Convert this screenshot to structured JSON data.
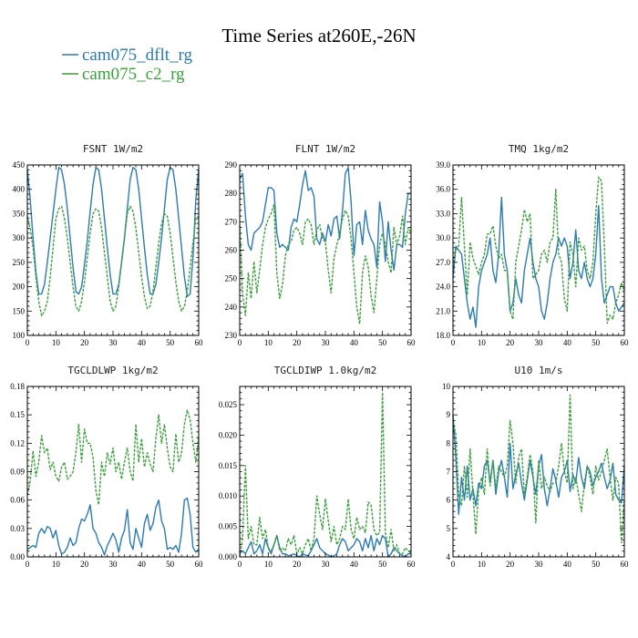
{
  "title": "Time Series at260E,-26N",
  "colors": {
    "series_a": "#2b7bb4",
    "series_b": "#3aa13a"
  },
  "legend": [
    {
      "label": "cam075_dflt_rg",
      "color": "#2b7bb4",
      "dash": "solid"
    },
    {
      "label": "cam075_c2_rg",
      "color": "#3aa13a",
      "dash": "solid"
    }
  ],
  "chart_data": [
    {
      "type": "line",
      "title": "FSNT   1W/m2",
      "xlim": [
        0,
        60
      ],
      "ylim": [
        100,
        450
      ],
      "x_ticks": [
        "0",
        "10",
        "20",
        "30",
        "40",
        "50",
        "60"
      ],
      "y_ticks": [
        "100",
        "150",
        "200",
        "250",
        "300",
        "350",
        "400",
        "450"
      ],
      "series": [
        {
          "name": "cam075_dflt_rg",
          "color": "#2b7bb4",
          "dash": "solid",
          "values": [
            440,
            380,
            300,
            230,
            185,
            185,
            205,
            250,
            300,
            350,
            400,
            445,
            440,
            410,
            360,
            300,
            240,
            190,
            185,
            200,
            245,
            295,
            355,
            410,
            445,
            440,
            400,
            340,
            280,
            225,
            185,
            185,
            205,
            250,
            300,
            360,
            420,
            445,
            440,
            400,
            340,
            280,
            225,
            185,
            185,
            205,
            250,
            300,
            360,
            420,
            445,
            440,
            400,
            340,
            280,
            220,
            180,
            185,
            260,
            380,
            440
          ]
        },
        {
          "name": "cam075_c2_rg",
          "color": "#3aa13a",
          "dash": "dashed",
          "values": [
            345,
            320,
            280,
            220,
            170,
            140,
            150,
            170,
            220,
            280,
            340,
            360,
            365,
            340,
            300,
            250,
            200,
            160,
            150,
            170,
            210,
            260,
            310,
            350,
            360,
            355,
            320,
            270,
            220,
            170,
            150,
            160,
            200,
            250,
            300,
            350,
            365,
            355,
            320,
            270,
            220,
            180,
            155,
            160,
            190,
            240,
            290,
            330,
            350,
            345,
            310,
            260,
            210,
            170,
            150,
            160,
            190,
            240,
            290,
            340,
            345
          ]
        }
      ]
    },
    {
      "type": "line",
      "title": "FLNT   1W/m2",
      "xlim": [
        0,
        60
      ],
      "ylim": [
        230,
        290
      ],
      "x_ticks": [
        "0",
        "10",
        "20",
        "30",
        "40",
        "50",
        "60"
      ],
      "y_ticks": [
        "230",
        "240",
        "250",
        "260",
        "270",
        "280",
        "290"
      ],
      "series": [
        {
          "name": "cam075_dflt_rg",
          "color": "#2b7bb4",
          "dash": "solid",
          "values": [
            285,
            287,
            272,
            262,
            260,
            266,
            267,
            268,
            270,
            276,
            282,
            282,
            281,
            266,
            261,
            262,
            261,
            260,
            268,
            271,
            270,
            276,
            283,
            288,
            281,
            282,
            279,
            264,
            262,
            266,
            263,
            269,
            265,
            271,
            272,
            264,
            274,
            287,
            289,
            277,
            258,
            269,
            270,
            262,
            274,
            267,
            264,
            262,
            254,
            277,
            270,
            256,
            270,
            260,
            253,
            262,
            262,
            261,
            273,
            280,
            280
          ]
        },
        {
          "name": "cam075_c2_rg",
          "color": "#3aa13a",
          "dash": "dashed",
          "values": [
            269,
            245,
            237,
            252,
            243,
            256,
            245,
            253,
            262,
            268,
            271,
            273,
            276,
            252,
            243,
            248,
            258,
            262,
            263,
            267,
            268,
            266,
            262,
            270,
            271,
            269,
            262,
            267,
            269,
            264,
            263,
            253,
            245,
            257,
            262,
            266,
            271,
            274,
            272,
            264,
            252,
            240,
            234,
            252,
            258,
            254,
            244,
            238,
            250,
            262,
            266,
            262,
            256,
            252,
            268,
            262,
            265,
            272,
            262,
            268,
            266
          ]
        }
      ]
    },
    {
      "type": "line",
      "title": "TMQ   1kg/m2",
      "xlim": [
        0,
        60
      ],
      "ylim": [
        18.0,
        39.0
      ],
      "x_ticks": [
        "0",
        "10",
        "20",
        "30",
        "40",
        "50",
        "60"
      ],
      "y_ticks": [
        "18.0",
        "21.0",
        "24.0",
        "27.0",
        "30.0",
        "33.0",
        "36.0",
        "39.0"
      ],
      "series": [
        {
          "name": "cam075_dflt_rg",
          "color": "#2b7bb4",
          "dash": "solid",
          "values": [
            25.0,
            29.0,
            28.5,
            28.0,
            25.0,
            22.0,
            20.0,
            21.5,
            19.0,
            24.0,
            26.0,
            27.0,
            28.0,
            30.0,
            26.0,
            24.5,
            28.0,
            35.0,
            28.0,
            26.0,
            21.0,
            22.0,
            25.0,
            23.0,
            22.0,
            26.0,
            28.0,
            30.0,
            27.0,
            25.0,
            24.0,
            21.0,
            20.0,
            22.0,
            25.0,
            27.0,
            28.0,
            30.0,
            29.0,
            30.0,
            29.0,
            25.0,
            27.0,
            31.0,
            26.0,
            25.0,
            27.0,
            25.0,
            24.0,
            25.0,
            28.0,
            34.0,
            25.0,
            22.0,
            23.0,
            24.0,
            24.0,
            22.0,
            21.0,
            21.5,
            22.0
          ]
        },
        {
          "name": "cam075_c2_rg",
          "color": "#3aa13a",
          "dash": "dashed",
          "values": [
            27.0,
            28.5,
            29.0,
            35.0,
            29.0,
            23.0,
            29.5,
            27.5,
            26.5,
            25.5,
            27.0,
            28.0,
            30.5,
            30.5,
            31.5,
            29.0,
            27.5,
            28.0,
            26.0,
            26.0,
            21.0,
            20.0,
            27.0,
            29.0,
            31.0,
            33.5,
            32.0,
            33.0,
            25.0,
            25.5,
            26.0,
            28.0,
            28.5,
            27.0,
            29.5,
            30.0,
            36.0,
            28.0,
            27.0,
            22.5,
            21.0,
            29.5,
            28.0,
            24.0,
            30.0,
            28.5,
            29.0,
            26.0,
            25.0,
            27.0,
            33.0,
            37.5,
            37.0,
            29.0,
            19.5,
            20.5,
            20.0,
            22.0,
            23.0,
            24.5,
            23.5
          ]
        }
      ]
    },
    {
      "type": "line",
      "title": "TGCLDLWP   1kg/m2",
      "xlim": [
        0,
        60
      ],
      "ylim": [
        0.0,
        0.18
      ],
      "x_ticks": [
        "0",
        "10",
        "20",
        "30",
        "40",
        "50",
        "60"
      ],
      "y_ticks": [
        "0.00",
        "0.03",
        "0.06",
        "0.09",
        "0.12",
        "0.15",
        "0.18"
      ],
      "series": [
        {
          "name": "cam075_dflt_rg",
          "color": "#2b7bb4",
          "dash": "solid",
          "values": [
            0.008,
            0.01,
            0.012,
            0.01,
            0.025,
            0.03,
            0.025,
            0.032,
            0.03,
            0.02,
            0.028,
            0.012,
            0.003,
            0.005,
            0.01,
            0.02,
            0.012,
            0.015,
            0.03,
            0.04,
            0.038,
            0.045,
            0.055,
            0.03,
            0.025,
            0.015,
            0.01,
            0.002,
            0.012,
            0.018,
            0.025,
            0.018,
            0.005,
            0.02,
            0.028,
            0.05,
            0.015,
            0.008,
            0.03,
            0.02,
            0.01,
            0.035,
            0.045,
            0.028,
            0.035,
            0.052,
            0.06,
            0.038,
            0.03,
            0.008,
            0.01,
            0.008,
            0.012,
            0.005,
            0.025,
            0.06,
            0.062,
            0.045,
            0.01,
            0.005,
            0.008
          ]
        },
        {
          "name": "cam075_c2_rg",
          "color": "#3aa13a",
          "dash": "dashed",
          "values": [
            0.065,
            0.08,
            0.112,
            0.085,
            0.1,
            0.128,
            0.11,
            0.115,
            0.092,
            0.1,
            0.085,
            0.08,
            0.095,
            0.1,
            0.082,
            0.085,
            0.09,
            0.11,
            0.14,
            0.1,
            0.135,
            0.12,
            0.12,
            0.105,
            0.07,
            0.055,
            0.1,
            0.085,
            0.11,
            0.098,
            0.115,
            0.09,
            0.1,
            0.082,
            0.1,
            0.115,
            0.09,
            0.08,
            0.14,
            0.1,
            0.125,
            0.095,
            0.11,
            0.098,
            0.09,
            0.125,
            0.15,
            0.12,
            0.14,
            0.115,
            0.095,
            0.09,
            0.13,
            0.1,
            0.11,
            0.14,
            0.155,
            0.145,
            0.12,
            0.1,
            0.128
          ]
        }
      ]
    },
    {
      "type": "line",
      "title": "TGCLDIWP   1.0kg/m2",
      "xlim": [
        0,
        60
      ],
      "ylim": [
        0.0,
        0.028
      ],
      "x_ticks": [
        "0",
        "10",
        "20",
        "30",
        "40",
        "50",
        "60"
      ],
      "y_ticks": [
        "0.000",
        "0.005",
        "0.010",
        "0.015",
        "0.020",
        "0.025"
      ],
      "series": [
        {
          "name": "cam075_dflt_rg",
          "color": "#2b7bb4",
          "dash": "solid",
          "values": [
            0.0005,
            0.001,
            0.0005,
            0.0015,
            0.0025,
            0.0005,
            0.001,
            0.002,
            0.0005,
            0.003,
            0.0015,
            0.0005,
            0.002,
            0.0035,
            0.0015,
            0.0005,
            0.0005,
            0.0002,
            0.0003,
            0.0005,
            0.0002,
            0.0,
            0.0005,
            0.0003,
            0.0002,
            0.001,
            0.002,
            0.003,
            0.0015,
            0.001,
            0.0005,
            0.0003,
            0.0,
            0.0002,
            0.0005,
            0.002,
            0.003,
            0.0025,
            0.001,
            0.0015,
            0.002,
            0.003,
            0.0025,
            0.001,
            0.003,
            0.0015,
            0.0035,
            0.001,
            0.003,
            0.002,
            0.0035,
            0.003,
            0.0,
            0.0005,
            0.0015,
            0.001,
            0.0005,
            0.0002,
            0.0,
            0.0005,
            0.0005
          ]
        },
        {
          "name": "cam075_c2_rg",
          "color": "#3aa13a",
          "dash": "dashed",
          "values": [
            0.0,
            0.003,
            0.015,
            0.003,
            0.005,
            0.002,
            0.002,
            0.0065,
            0.003,
            0.0045,
            0.0015,
            0.001,
            0.002,
            0.0035,
            0.001,
            0.0015,
            0.001,
            0.003,
            0.002,
            0.0035,
            0.0005,
            0.0015,
            0.0005,
            0.002,
            0.003,
            0.001,
            0.003,
            0.01,
            0.007,
            0.0045,
            0.0095,
            0.006,
            0.0025,
            0.005,
            0.002,
            0.003,
            0.005,
            0.0045,
            0.0095,
            0.0045,
            0.003,
            0.0065,
            0.0045,
            0.005,
            0.004,
            0.009,
            0.0085,
            0.0045,
            0.0035,
            0.004,
            0.027,
            0.004,
            0.0015,
            0.0045,
            0.001,
            0.002,
            0.0005,
            0.0005,
            0.0015,
            0.001,
            0.0005
          ]
        }
      ]
    },
    {
      "type": "line",
      "title": "U10   1m/s",
      "xlim": [
        0,
        60
      ],
      "ylim": [
        4,
        10
      ],
      "x_ticks": [
        "0",
        "10",
        "20",
        "30",
        "40",
        "50",
        "60"
      ],
      "y_ticks": [
        "4",
        "5",
        "6",
        "7",
        "8",
        "9",
        "10"
      ],
      "series": [
        {
          "name": "cam075_dflt_rg",
          "color": "#2b7bb4",
          "dash": "solid",
          "values": [
            9.0,
            7.5,
            5.5,
            6.8,
            6.0,
            7.2,
            6.0,
            6.4,
            5.8,
            6.6,
            6.4,
            7.2,
            7.4,
            6.6,
            7.4,
            6.2,
            7.0,
            7.4,
            6.8,
            6.1,
            8.0,
            6.4,
            6.9,
            7.3,
            6.6,
            6.0,
            6.7,
            7.4,
            6.8,
            6.2,
            7.2,
            7.6,
            6.4,
            5.8,
            6.4,
            7.1,
            6.7,
            6.1,
            6.8,
            7.0,
            7.4,
            6.3,
            6.9,
            6.6,
            7.5,
            6.8,
            6.4,
            7.2,
            7.0,
            6.5,
            6.8,
            7.0,
            7.3,
            6.8,
            6.4,
            6.7,
            7.3,
            6.2,
            6.0,
            5.9,
            7.2
          ]
        },
        {
          "name": "cam075_c2_rg",
          "color": "#3aa13a",
          "dash": "dashed",
          "values": [
            8.8,
            8.3,
            6.2,
            5.8,
            7.2,
            6.1,
            7.8,
            6.2,
            4.8,
            6.4,
            6.8,
            6.2,
            7.8,
            6.5,
            7.4,
            6.4,
            7.2,
            7.0,
            6.8,
            7.2,
            8.8,
            8.0,
            6.6,
            7.5,
            7.8,
            6.2,
            6.8,
            7.6,
            7.0,
            5.2,
            7.4,
            6.4,
            6.8,
            6.5,
            6.3,
            6.6,
            6.6,
            7.2,
            8.0,
            7.0,
            6.6,
            9.7,
            6.4,
            6.8,
            6.2,
            5.6,
            6.6,
            7.2,
            6.8,
            6.2,
            7.2,
            6.7,
            7.0,
            7.4,
            7.8,
            6.8,
            6.0,
            6.8,
            6.6,
            4.5,
            6.0
          ]
        }
      ]
    }
  ]
}
